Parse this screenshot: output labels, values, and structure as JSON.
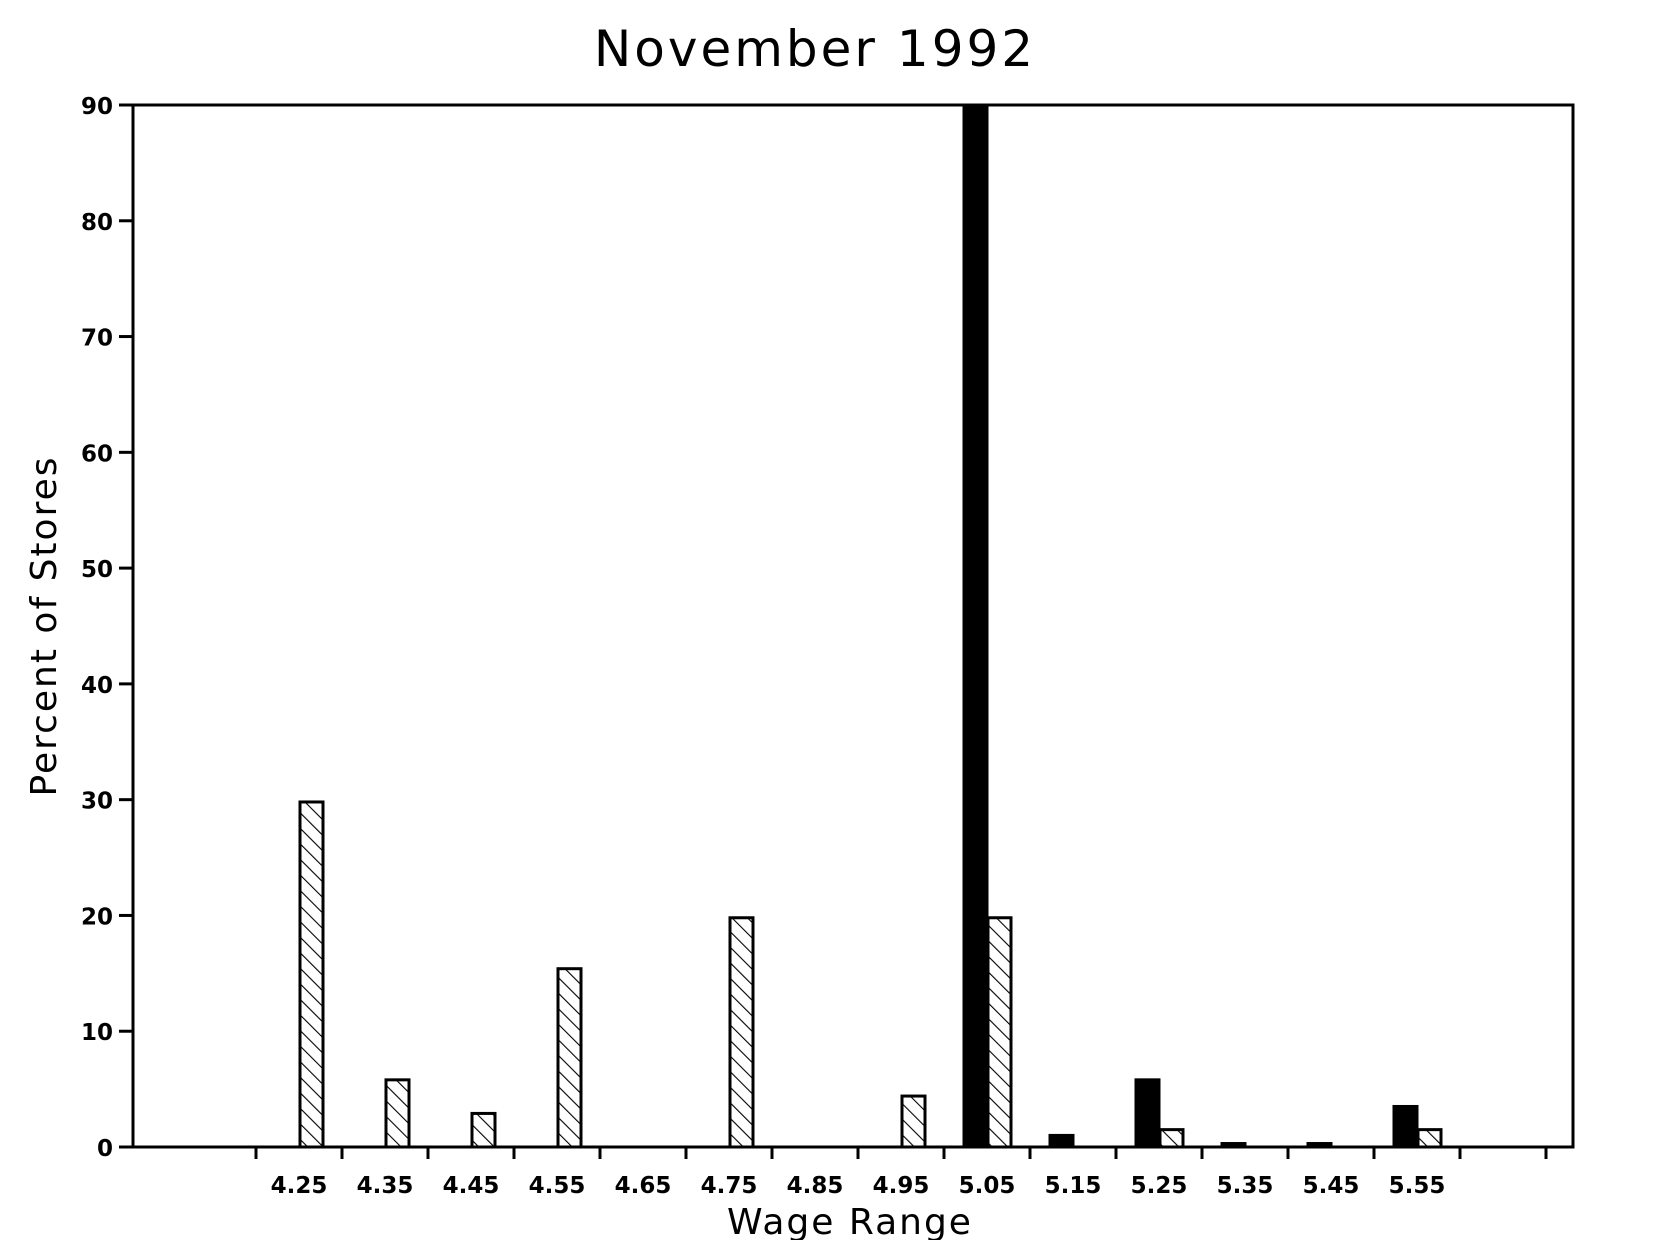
{
  "chart_data": {
    "type": "bar",
    "title": "November 1992",
    "xlabel": "Wage Range",
    "ylabel": "Percent of Stores",
    "categories": [
      "4.25",
      "4.35",
      "4.45",
      "4.55",
      "4.65",
      "4.75",
      "4.85",
      "4.95",
      "5.05",
      "5.15",
      "5.25",
      "5.35",
      "5.45",
      "5.55"
    ],
    "series": [
      {
        "fill": "solid",
        "color": "#000000",
        "values": [
          0,
          0,
          0,
          0,
          0,
          0,
          0,
          0,
          90,
          1,
          5.8,
          0.3,
          0.3,
          3.5
        ]
      },
      {
        "fill": "hatched",
        "color": "#000000",
        "values": [
          29.8,
          5.8,
          2.9,
          15.4,
          0,
          19.8,
          0,
          4.4,
          19.8,
          0,
          1.5,
          0,
          0,
          1.5
        ]
      }
    ],
    "ylim": [
      0,
      90
    ],
    "yticks": [
      0,
      10,
      20,
      30,
      40,
      50,
      60,
      70,
      80,
      90
    ],
    "grid": false,
    "legend": "none"
  }
}
